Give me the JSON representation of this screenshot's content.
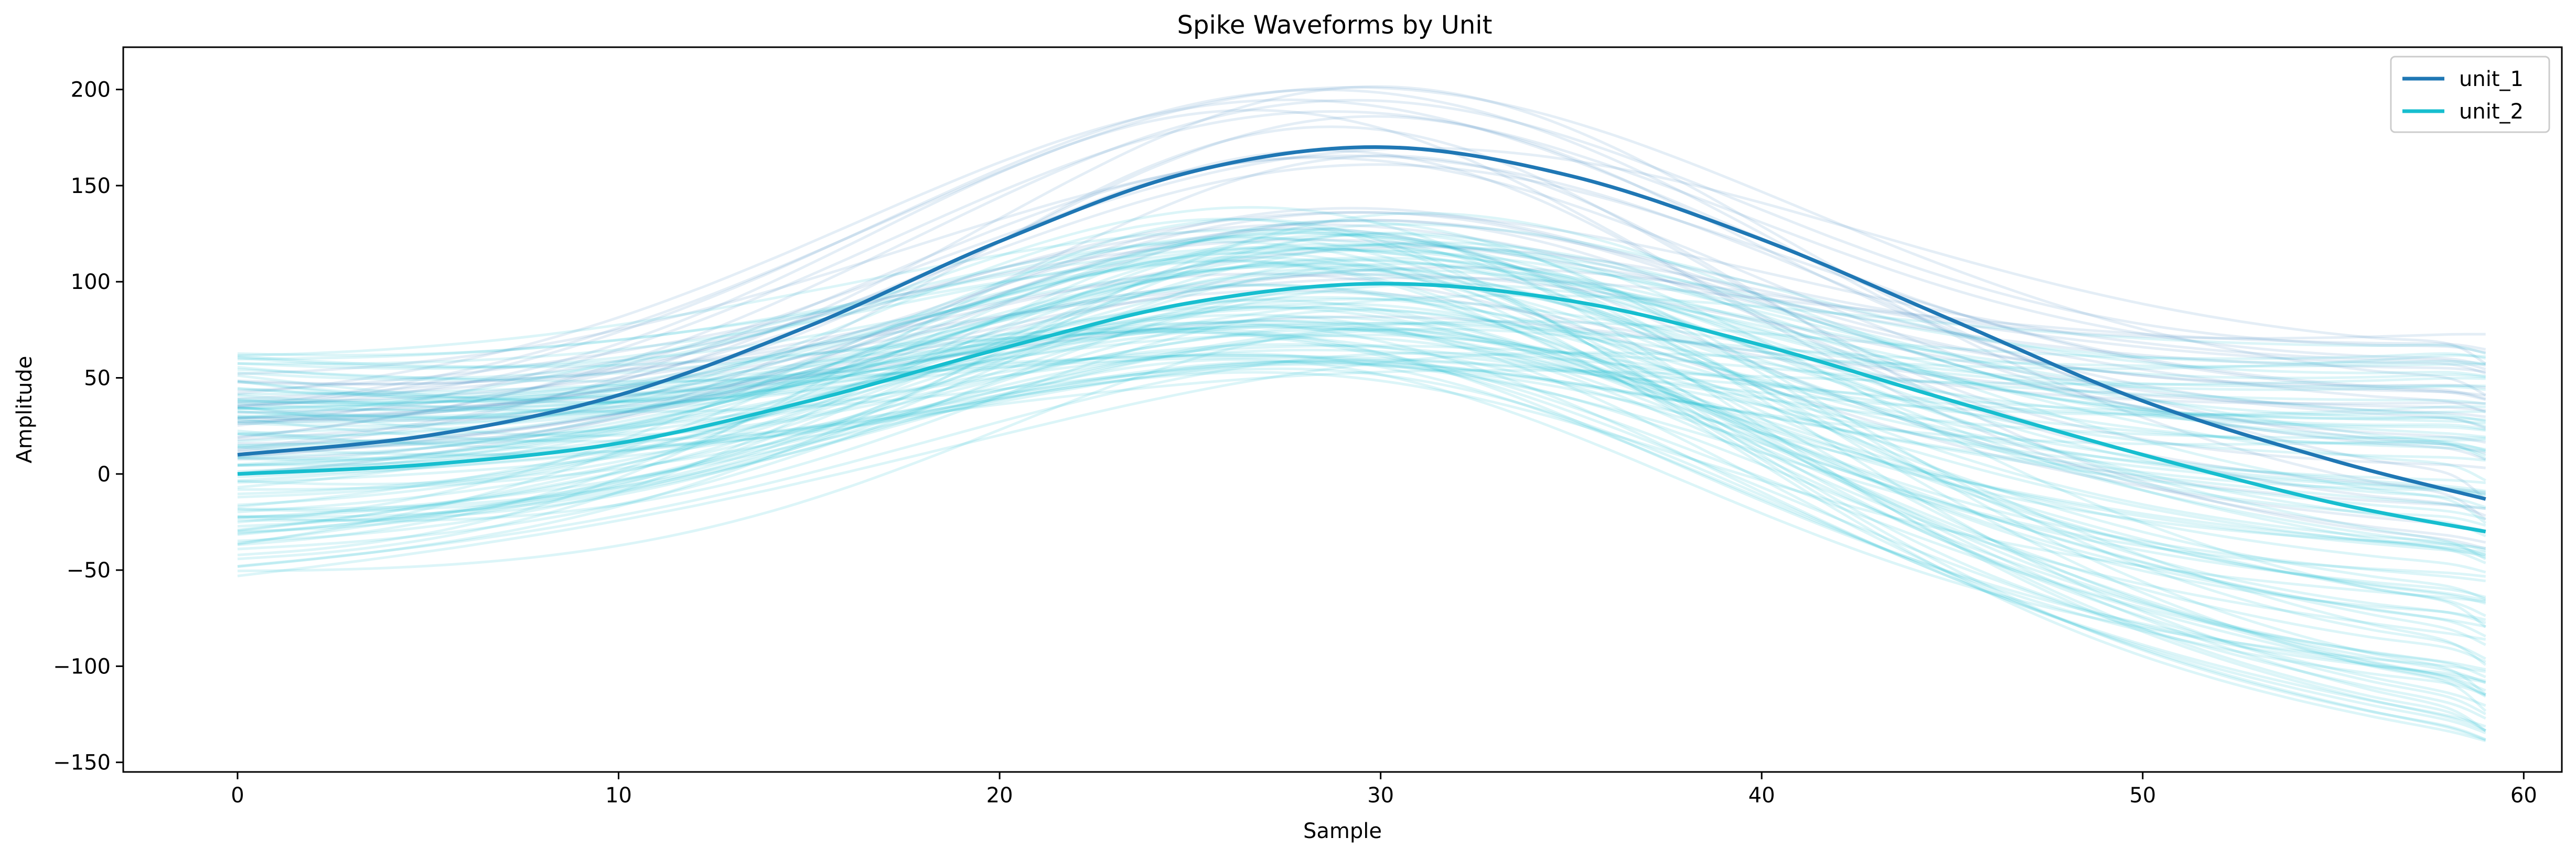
{
  "chart_data": {
    "type": "line",
    "title": "Spike Waveforms by Unit",
    "xlabel": "Sample",
    "ylabel": "Amplitude",
    "xlim": [
      -3,
      61
    ],
    "ylim": [
      -155,
      222
    ],
    "xticks": [
      0,
      10,
      20,
      30,
      40,
      50,
      60
    ],
    "yticks": [
      -150,
      -100,
      -50,
      0,
      50,
      100,
      150,
      200
    ],
    "grid": false,
    "legend_position": "top-right",
    "samples": 60,
    "series": [
      {
        "name": "unit_1",
        "color": "#1f77b4",
        "role": "mean",
        "x": [
          0,
          5,
          10,
          15,
          20,
          25,
          30,
          35,
          40,
          45,
          50,
          55,
          59
        ],
        "values": [
          10,
          20,
          41,
          77,
          121,
          157,
          170,
          155,
          122,
          80,
          38,
          7,
          -13
        ]
      },
      {
        "name": "unit_2",
        "color": "#17becf",
        "role": "mean",
        "x": [
          0,
          5,
          10,
          15,
          20,
          25,
          30,
          35,
          40,
          45,
          50,
          55,
          59
        ],
        "values": [
          0,
          5,
          16,
          38,
          65,
          89,
          99,
          90,
          67,
          38,
          10,
          -15,
          -30
        ]
      }
    ],
    "individual_traces": [
      {
        "unit": "unit_1",
        "count": 30,
        "alpha": 0.12,
        "start_range": [
          -10,
          57
        ],
        "peak_range": [
          80,
          205
        ],
        "end_range": [
          -50,
          80
        ]
      },
      {
        "unit": "unit_2",
        "count": 90,
        "alpha": 0.15,
        "start_range": [
          -55,
          58
        ],
        "peak_range": [
          48,
          135
        ],
        "end_range": [
          -140,
          65
        ]
      }
    ]
  }
}
